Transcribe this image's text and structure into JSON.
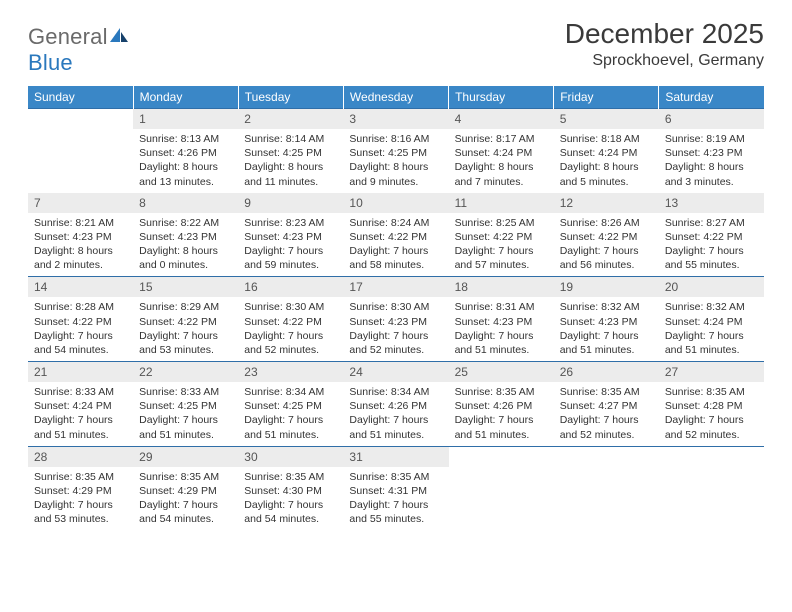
{
  "brand": {
    "part1": "General",
    "part2": "Blue"
  },
  "title": "December 2025",
  "location": "Sprockhoevel, Germany",
  "colors": {
    "header_bg": "#3a87c7",
    "header_text": "#ffffff",
    "daynum_bg": "#ececec",
    "daynum_text": "#555555",
    "body_text": "#333333",
    "rule": "#2f6ea8",
    "logo_gray": "#6a6a6a",
    "logo_blue": "#2a78bd"
  },
  "weekdays": [
    "Sunday",
    "Monday",
    "Tuesday",
    "Wednesday",
    "Thursday",
    "Friday",
    "Saturday"
  ],
  "weeks": [
    [
      null,
      {
        "n": "1",
        "sr": "Sunrise: 8:13 AM",
        "ss": "Sunset: 4:26 PM",
        "dl": "Daylight: 8 hours and 13 minutes."
      },
      {
        "n": "2",
        "sr": "Sunrise: 8:14 AM",
        "ss": "Sunset: 4:25 PM",
        "dl": "Daylight: 8 hours and 11 minutes."
      },
      {
        "n": "3",
        "sr": "Sunrise: 8:16 AM",
        "ss": "Sunset: 4:25 PM",
        "dl": "Daylight: 8 hours and 9 minutes."
      },
      {
        "n": "4",
        "sr": "Sunrise: 8:17 AM",
        "ss": "Sunset: 4:24 PM",
        "dl": "Daylight: 8 hours and 7 minutes."
      },
      {
        "n": "5",
        "sr": "Sunrise: 8:18 AM",
        "ss": "Sunset: 4:24 PM",
        "dl": "Daylight: 8 hours and 5 minutes."
      },
      {
        "n": "6",
        "sr": "Sunrise: 8:19 AM",
        "ss": "Sunset: 4:23 PM",
        "dl": "Daylight: 8 hours and 3 minutes."
      }
    ],
    [
      {
        "n": "7",
        "sr": "Sunrise: 8:21 AM",
        "ss": "Sunset: 4:23 PM",
        "dl": "Daylight: 8 hours and 2 minutes."
      },
      {
        "n": "8",
        "sr": "Sunrise: 8:22 AM",
        "ss": "Sunset: 4:23 PM",
        "dl": "Daylight: 8 hours and 0 minutes."
      },
      {
        "n": "9",
        "sr": "Sunrise: 8:23 AM",
        "ss": "Sunset: 4:23 PM",
        "dl": "Daylight: 7 hours and 59 minutes."
      },
      {
        "n": "10",
        "sr": "Sunrise: 8:24 AM",
        "ss": "Sunset: 4:22 PM",
        "dl": "Daylight: 7 hours and 58 minutes."
      },
      {
        "n": "11",
        "sr": "Sunrise: 8:25 AM",
        "ss": "Sunset: 4:22 PM",
        "dl": "Daylight: 7 hours and 57 minutes."
      },
      {
        "n": "12",
        "sr": "Sunrise: 8:26 AM",
        "ss": "Sunset: 4:22 PM",
        "dl": "Daylight: 7 hours and 56 minutes."
      },
      {
        "n": "13",
        "sr": "Sunrise: 8:27 AM",
        "ss": "Sunset: 4:22 PM",
        "dl": "Daylight: 7 hours and 55 minutes."
      }
    ],
    [
      {
        "n": "14",
        "sr": "Sunrise: 8:28 AM",
        "ss": "Sunset: 4:22 PM",
        "dl": "Daylight: 7 hours and 54 minutes."
      },
      {
        "n": "15",
        "sr": "Sunrise: 8:29 AM",
        "ss": "Sunset: 4:22 PM",
        "dl": "Daylight: 7 hours and 53 minutes."
      },
      {
        "n": "16",
        "sr": "Sunrise: 8:30 AM",
        "ss": "Sunset: 4:22 PM",
        "dl": "Daylight: 7 hours and 52 minutes."
      },
      {
        "n": "17",
        "sr": "Sunrise: 8:30 AM",
        "ss": "Sunset: 4:23 PM",
        "dl": "Daylight: 7 hours and 52 minutes."
      },
      {
        "n": "18",
        "sr": "Sunrise: 8:31 AM",
        "ss": "Sunset: 4:23 PM",
        "dl": "Daylight: 7 hours and 51 minutes."
      },
      {
        "n": "19",
        "sr": "Sunrise: 8:32 AM",
        "ss": "Sunset: 4:23 PM",
        "dl": "Daylight: 7 hours and 51 minutes."
      },
      {
        "n": "20",
        "sr": "Sunrise: 8:32 AM",
        "ss": "Sunset: 4:24 PM",
        "dl": "Daylight: 7 hours and 51 minutes."
      }
    ],
    [
      {
        "n": "21",
        "sr": "Sunrise: 8:33 AM",
        "ss": "Sunset: 4:24 PM",
        "dl": "Daylight: 7 hours and 51 minutes."
      },
      {
        "n": "22",
        "sr": "Sunrise: 8:33 AM",
        "ss": "Sunset: 4:25 PM",
        "dl": "Daylight: 7 hours and 51 minutes."
      },
      {
        "n": "23",
        "sr": "Sunrise: 8:34 AM",
        "ss": "Sunset: 4:25 PM",
        "dl": "Daylight: 7 hours and 51 minutes."
      },
      {
        "n": "24",
        "sr": "Sunrise: 8:34 AM",
        "ss": "Sunset: 4:26 PM",
        "dl": "Daylight: 7 hours and 51 minutes."
      },
      {
        "n": "25",
        "sr": "Sunrise: 8:35 AM",
        "ss": "Sunset: 4:26 PM",
        "dl": "Daylight: 7 hours and 51 minutes."
      },
      {
        "n": "26",
        "sr": "Sunrise: 8:35 AM",
        "ss": "Sunset: 4:27 PM",
        "dl": "Daylight: 7 hours and 52 minutes."
      },
      {
        "n": "27",
        "sr": "Sunrise: 8:35 AM",
        "ss": "Sunset: 4:28 PM",
        "dl": "Daylight: 7 hours and 52 minutes."
      }
    ],
    [
      {
        "n": "28",
        "sr": "Sunrise: 8:35 AM",
        "ss": "Sunset: 4:29 PM",
        "dl": "Daylight: 7 hours and 53 minutes."
      },
      {
        "n": "29",
        "sr": "Sunrise: 8:35 AM",
        "ss": "Sunset: 4:29 PM",
        "dl": "Daylight: 7 hours and 54 minutes."
      },
      {
        "n": "30",
        "sr": "Sunrise: 8:35 AM",
        "ss": "Sunset: 4:30 PM",
        "dl": "Daylight: 7 hours and 54 minutes."
      },
      {
        "n": "31",
        "sr": "Sunrise: 8:35 AM",
        "ss": "Sunset: 4:31 PM",
        "dl": "Daylight: 7 hours and 55 minutes."
      },
      null,
      null,
      null
    ]
  ]
}
